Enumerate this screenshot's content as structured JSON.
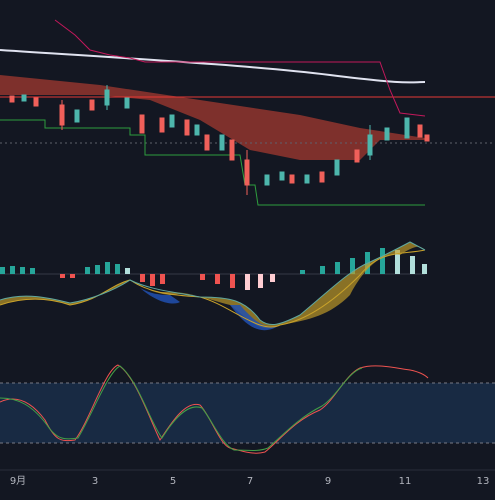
{
  "x_axis": {
    "labels": [
      "9月",
      "3",
      "5",
      "7",
      "9",
      "11",
      "13"
    ]
  }
}
